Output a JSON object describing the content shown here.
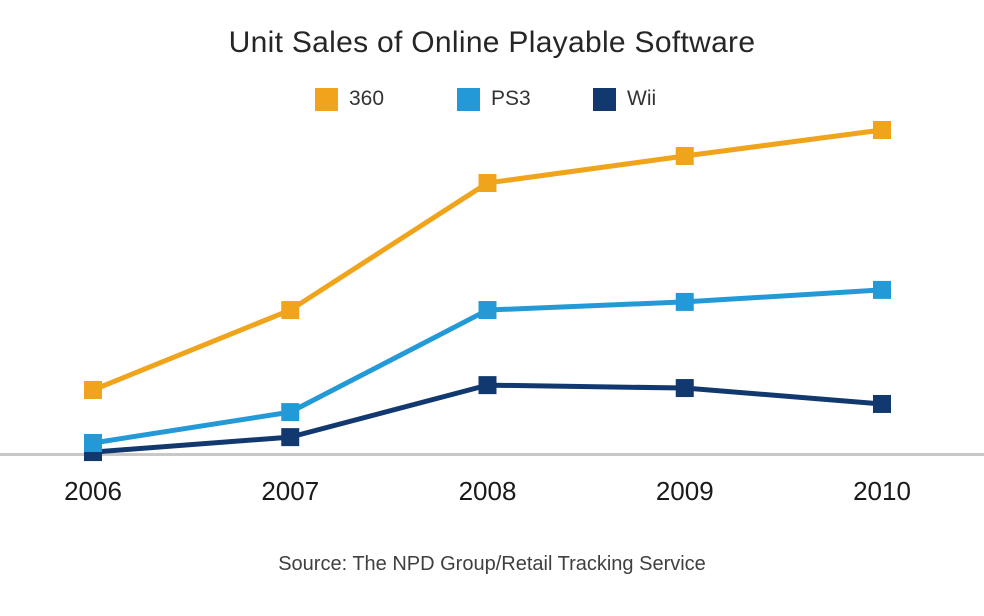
{
  "title": "Unit Sales of Online Playable Software",
  "source": "Source: The NPD Group/Retail Tracking Service",
  "chart_data": {
    "type": "line",
    "title": "Unit Sales of Online Playable Software",
    "categories": [
      "2006",
      "2007",
      "2008",
      "2009",
      "2010"
    ],
    "series": [
      {
        "name": "360",
        "color": "#F0A41C",
        "values": [
          20.0,
          44.6,
          83.7,
          92.0,
          100.0
        ]
      },
      {
        "name": "PS3",
        "color": "#239AD7",
        "values": [
          3.7,
          13.2,
          44.6,
          47.1,
          50.8
        ]
      },
      {
        "name": "Wii",
        "color": "#12396F",
        "values": [
          0.9,
          5.5,
          21.5,
          20.6,
          15.7
        ]
      }
    ],
    "xlabel": "",
    "ylabel": "",
    "ylim": [
      0,
      100
    ],
    "units": "relative index estimated from pixel heights (chart displays no y-axis labels; 2010 Xbox 360 value = 100)",
    "grid": false,
    "y_axis_visible": false,
    "legend_position": "top-center",
    "marker": "square",
    "marker_size": 18,
    "line_width": 5,
    "baseline_color": "#C8C8C8",
    "caption": "Source: The NPD Group/Retail Tracking Service"
  },
  "colors": {
    "background": "#FFFFFF",
    "title_text": "#262626",
    "axis_label_text": "#1A1A1A",
    "source_text": "#404040"
  }
}
